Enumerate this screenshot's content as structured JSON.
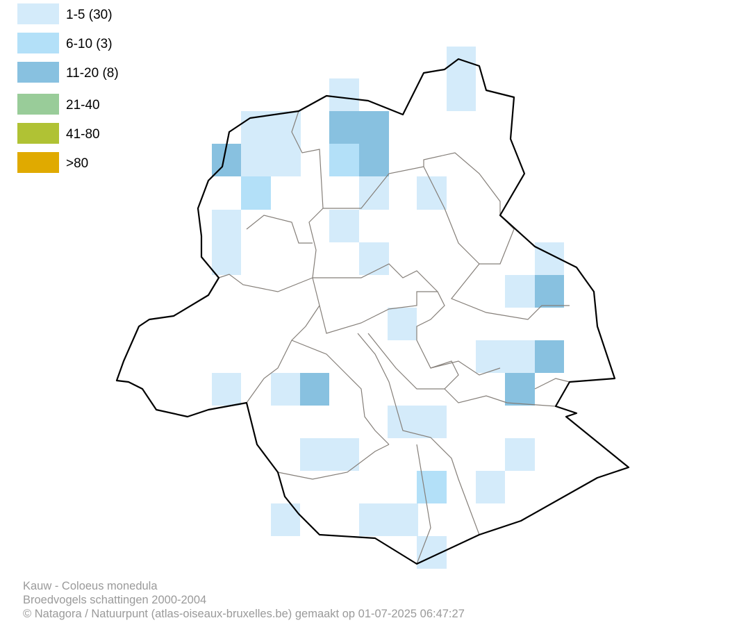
{
  "legend": [
    {
      "label": "1-5 (30)",
      "color": "#d4ebfa"
    },
    {
      "label": "6-10 (3)",
      "color": "#b3e0f8"
    },
    {
      "label": "11-20 (8)",
      "color": "#88c1e0"
    },
    {
      "label": "21-40",
      "color": "#99cc99"
    },
    {
      "label": "41-80",
      "color": "#b0c234"
    },
    {
      "label": ">80",
      "color": "#e0aa00"
    }
  ],
  "footer": {
    "lines": [
      "Kauw - Coloeus monedula",
      "Broedvogels schattingen 2000-2004",
      "© Natagora / Natuurpunt (atlas-oiseaux-bruxelles.be) gemaakt op 01-07-2025 06:47:27"
    ]
  }
}
